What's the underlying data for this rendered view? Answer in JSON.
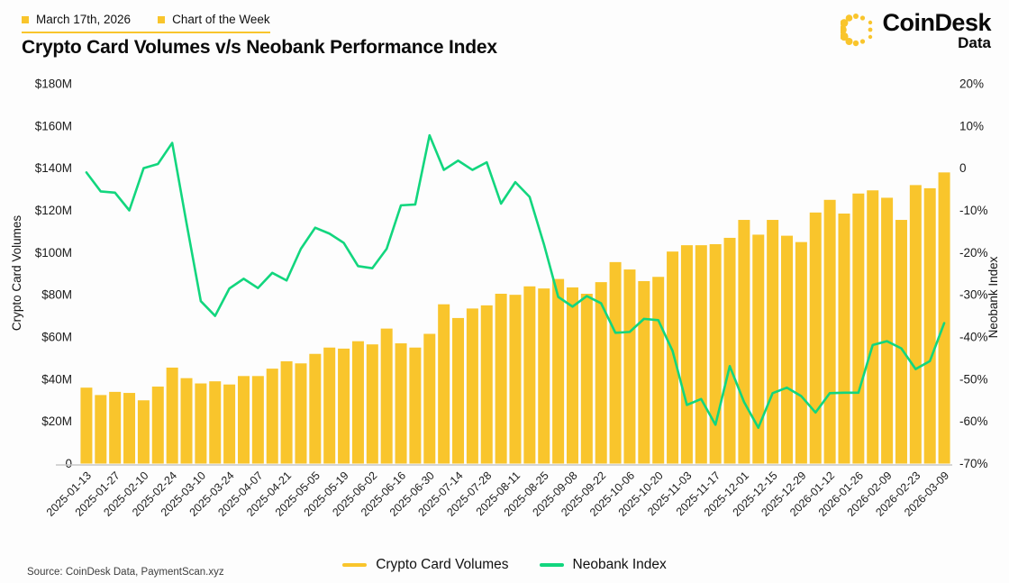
{
  "colors": {
    "yellow": "#F9C52C",
    "green": "#12D67E",
    "axis_line": "#c6c6c6",
    "text_dark": "#101010"
  },
  "header": {
    "date": "March 17th, 2026",
    "tag": "Chart of the Week",
    "title": "Crypto Card Volumes v/s Neobank Performance Index"
  },
  "brand": {
    "name": "CoinDesk",
    "sub": "Data"
  },
  "legend": [
    {
      "label": "Crypto Card Volumes",
      "color": "#F9C52C"
    },
    {
      "label": "Neobank Index",
      "color": "#12D67E"
    }
  ],
  "source": "Source: CoinDesk Data, PaymentScan.xyz",
  "chart_data": {
    "type": "bar+line",
    "title": "Crypto Card Volumes v/s Neobank Performance Index",
    "ylabel_left": "Crypto Card Volumes",
    "ylabel_right": "Neobank Index",
    "ylim_left": [
      0,
      180
    ],
    "ylim_right": [
      -70,
      20
    ],
    "grid": false,
    "legend_position": "bottom-center",
    "yticks_left": [
      {
        "v": 180,
        "label": "$180M"
      },
      {
        "v": 160,
        "label": "$160M"
      },
      {
        "v": 140,
        "label": "$140M"
      },
      {
        "v": 120,
        "label": "$120M"
      },
      {
        "v": 100,
        "label": "$100M"
      },
      {
        "v": 80,
        "label": "$80M"
      },
      {
        "v": 60,
        "label": "$60M"
      },
      {
        "v": 40,
        "label": "$40M"
      },
      {
        "v": 20,
        "label": "$20M"
      },
      {
        "v": 0,
        "label": "0"
      }
    ],
    "yticks_right": [
      {
        "v": 20,
        "label": "20%"
      },
      {
        "v": 10,
        "label": "10%"
      },
      {
        "v": 0,
        "label": "0"
      },
      {
        "v": -10,
        "label": "-10%"
      },
      {
        "v": -20,
        "label": "-20%"
      },
      {
        "v": -30,
        "label": "-30%"
      },
      {
        "v": -40,
        "label": "-40%"
      },
      {
        "v": -50,
        "label": "-50%"
      },
      {
        "v": -60,
        "label": "-60%"
      },
      {
        "v": -70,
        "label": "-70%"
      }
    ],
    "categories": [
      "2025-01-13",
      "2025-01-20",
      "2025-01-27",
      "2025-02-03",
      "2025-02-10",
      "2025-02-17",
      "2025-02-24",
      "2025-03-03",
      "2025-03-10",
      "2025-03-17",
      "2025-03-24",
      "2025-03-31",
      "2025-04-07",
      "2025-04-14",
      "2025-04-21",
      "2025-04-28",
      "2025-05-05",
      "2025-05-12",
      "2025-05-19",
      "2025-05-26",
      "2025-06-02",
      "2025-06-09",
      "2025-06-16",
      "2025-06-23",
      "2025-06-30",
      "2025-07-07",
      "2025-07-14",
      "2025-07-21",
      "2025-07-28",
      "2025-08-04",
      "2025-08-11",
      "2025-08-18",
      "2025-08-25",
      "2025-09-01",
      "2025-09-08",
      "2025-09-15",
      "2025-09-22",
      "2025-09-29",
      "2025-10-06",
      "2025-10-13",
      "2025-10-20",
      "2025-10-27",
      "2025-11-03",
      "2025-11-10",
      "2025-11-17",
      "2025-11-24",
      "2025-12-01",
      "2025-12-08",
      "2025-12-15",
      "2025-12-22",
      "2025-12-29",
      "2026-01-05",
      "2026-01-12",
      "2026-01-19",
      "2026-01-26",
      "2026-02-02",
      "2026-02-09",
      "2026-02-16",
      "2026-02-23",
      "2026-03-02",
      "2026-03-09"
    ],
    "x_tick_every": 2,
    "series": [
      {
        "name": "Crypto Card Volumes",
        "type": "bar",
        "axis": "left",
        "unit": "$M",
        "color": "#F9C52C",
        "values": [
          36,
          32.5,
          34,
          33.5,
          30,
          36.5,
          45.5,
          40.5,
          38,
          39,
          37.5,
          41.5,
          41.5,
          45,
          48.5,
          47.5,
          52,
          55,
          54.5,
          58,
          56.5,
          64,
          57,
          55,
          61.5,
          75.5,
          69,
          73.5,
          75,
          80.5,
          80,
          84,
          83,
          87.5,
          83.5,
          80.5,
          86,
          95.5,
          92,
          86.5,
          88.5,
          100.5,
          103.5,
          103.5,
          104,
          107,
          115.5,
          108.5,
          115.5,
          108,
          105,
          119,
          125,
          118.5,
          128,
          129.5,
          126,
          115.5,
          132,
          130.5,
          138
        ]
      },
      {
        "name": "Neobank Index",
        "type": "line",
        "axis": "right",
        "unit": "%",
        "color": "#12D67E",
        "values": [
          -1,
          -5.5,
          -5.8,
          -10,
          0,
          1,
          6,
          -13,
          -31.5,
          -35,
          -28.5,
          -26.2,
          -28.4,
          -24.8,
          -26.6,
          -19.1,
          -14.1,
          -15.5,
          -17.7,
          -23.2,
          -23.7,
          -19.1,
          -8.8,
          -8.6,
          7.8,
          -0.4,
          1.8,
          -0.4,
          1.4,
          -8.4,
          -3.3,
          -6.8,
          -18,
          -30.5,
          -32.8,
          -30.3,
          -32,
          -39,
          -38.8,
          -35.7,
          -36,
          -43.3,
          -56.1,
          -54.7,
          -60.8,
          -46.9,
          -55.4,
          -61.5,
          -53.3,
          -52,
          -54,
          -57.9,
          -53.3,
          -53.2,
          -53.2,
          -41.9,
          -41,
          -42.7,
          -47.6,
          -45.7,
          -36.7
        ]
      }
    ]
  }
}
